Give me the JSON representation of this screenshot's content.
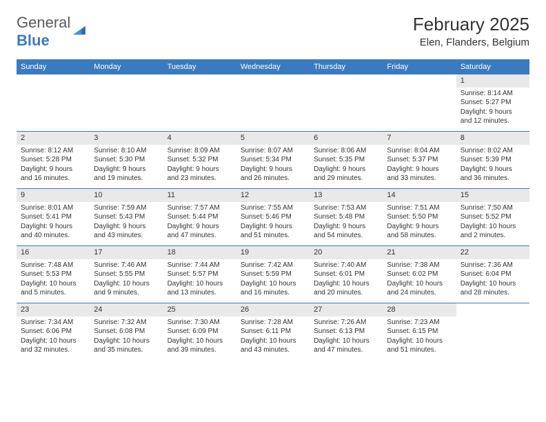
{
  "branding": {
    "logo_word1": "General",
    "logo_word2": "Blue",
    "logo_color_dark": "#5a5a5a",
    "logo_color_blue": "#3a7bbf"
  },
  "header": {
    "month_title": "February 2025",
    "location": "Elen, Flanders, Belgium"
  },
  "style": {
    "header_bg": "#3a7bbf",
    "header_text": "#ffffff",
    "grid_border": "#3a7bbf",
    "daynum_bg": "#e9e9e9",
    "body_text": "#333333",
    "page_bg": "#ffffff",
    "title_fontsize": 26,
    "location_fontsize": 15,
    "weekday_fontsize": 11,
    "cell_fontsize": 10
  },
  "weekdays": [
    "Sunday",
    "Monday",
    "Tuesday",
    "Wednesday",
    "Thursday",
    "Friday",
    "Saturday"
  ],
  "weeks": [
    [
      {
        "day": "",
        "sunrise": "",
        "sunset": "",
        "daylight": ""
      },
      {
        "day": "",
        "sunrise": "",
        "sunset": "",
        "daylight": ""
      },
      {
        "day": "",
        "sunrise": "",
        "sunset": "",
        "daylight": ""
      },
      {
        "day": "",
        "sunrise": "",
        "sunset": "",
        "daylight": ""
      },
      {
        "day": "",
        "sunrise": "",
        "sunset": "",
        "daylight": ""
      },
      {
        "day": "",
        "sunrise": "",
        "sunset": "",
        "daylight": ""
      },
      {
        "day": "1",
        "sunrise": "Sunrise: 8:14 AM",
        "sunset": "Sunset: 5:27 PM",
        "daylight": "Daylight: 9 hours and 12 minutes."
      }
    ],
    [
      {
        "day": "2",
        "sunrise": "Sunrise: 8:12 AM",
        "sunset": "Sunset: 5:28 PM",
        "daylight": "Daylight: 9 hours and 16 minutes."
      },
      {
        "day": "3",
        "sunrise": "Sunrise: 8:10 AM",
        "sunset": "Sunset: 5:30 PM",
        "daylight": "Daylight: 9 hours and 19 minutes."
      },
      {
        "day": "4",
        "sunrise": "Sunrise: 8:09 AM",
        "sunset": "Sunset: 5:32 PM",
        "daylight": "Daylight: 9 hours and 23 minutes."
      },
      {
        "day": "5",
        "sunrise": "Sunrise: 8:07 AM",
        "sunset": "Sunset: 5:34 PM",
        "daylight": "Daylight: 9 hours and 26 minutes."
      },
      {
        "day": "6",
        "sunrise": "Sunrise: 8:06 AM",
        "sunset": "Sunset: 5:35 PM",
        "daylight": "Daylight: 9 hours and 29 minutes."
      },
      {
        "day": "7",
        "sunrise": "Sunrise: 8:04 AM",
        "sunset": "Sunset: 5:37 PM",
        "daylight": "Daylight: 9 hours and 33 minutes."
      },
      {
        "day": "8",
        "sunrise": "Sunrise: 8:02 AM",
        "sunset": "Sunset: 5:39 PM",
        "daylight": "Daylight: 9 hours and 36 minutes."
      }
    ],
    [
      {
        "day": "9",
        "sunrise": "Sunrise: 8:01 AM",
        "sunset": "Sunset: 5:41 PM",
        "daylight": "Daylight: 9 hours and 40 minutes."
      },
      {
        "day": "10",
        "sunrise": "Sunrise: 7:59 AM",
        "sunset": "Sunset: 5:43 PM",
        "daylight": "Daylight: 9 hours and 43 minutes."
      },
      {
        "day": "11",
        "sunrise": "Sunrise: 7:57 AM",
        "sunset": "Sunset: 5:44 PM",
        "daylight": "Daylight: 9 hours and 47 minutes."
      },
      {
        "day": "12",
        "sunrise": "Sunrise: 7:55 AM",
        "sunset": "Sunset: 5:46 PM",
        "daylight": "Daylight: 9 hours and 51 minutes."
      },
      {
        "day": "13",
        "sunrise": "Sunrise: 7:53 AM",
        "sunset": "Sunset: 5:48 PM",
        "daylight": "Daylight: 9 hours and 54 minutes."
      },
      {
        "day": "14",
        "sunrise": "Sunrise: 7:51 AM",
        "sunset": "Sunset: 5:50 PM",
        "daylight": "Daylight: 9 hours and 58 minutes."
      },
      {
        "day": "15",
        "sunrise": "Sunrise: 7:50 AM",
        "sunset": "Sunset: 5:52 PM",
        "daylight": "Daylight: 10 hours and 2 minutes."
      }
    ],
    [
      {
        "day": "16",
        "sunrise": "Sunrise: 7:48 AM",
        "sunset": "Sunset: 5:53 PM",
        "daylight": "Daylight: 10 hours and 5 minutes."
      },
      {
        "day": "17",
        "sunrise": "Sunrise: 7:46 AM",
        "sunset": "Sunset: 5:55 PM",
        "daylight": "Daylight: 10 hours and 9 minutes."
      },
      {
        "day": "18",
        "sunrise": "Sunrise: 7:44 AM",
        "sunset": "Sunset: 5:57 PM",
        "daylight": "Daylight: 10 hours and 13 minutes."
      },
      {
        "day": "19",
        "sunrise": "Sunrise: 7:42 AM",
        "sunset": "Sunset: 5:59 PM",
        "daylight": "Daylight: 10 hours and 16 minutes."
      },
      {
        "day": "20",
        "sunrise": "Sunrise: 7:40 AM",
        "sunset": "Sunset: 6:01 PM",
        "daylight": "Daylight: 10 hours and 20 minutes."
      },
      {
        "day": "21",
        "sunrise": "Sunrise: 7:38 AM",
        "sunset": "Sunset: 6:02 PM",
        "daylight": "Daylight: 10 hours and 24 minutes."
      },
      {
        "day": "22",
        "sunrise": "Sunrise: 7:36 AM",
        "sunset": "Sunset: 6:04 PM",
        "daylight": "Daylight: 10 hours and 28 minutes."
      }
    ],
    [
      {
        "day": "23",
        "sunrise": "Sunrise: 7:34 AM",
        "sunset": "Sunset: 6:06 PM",
        "daylight": "Daylight: 10 hours and 32 minutes."
      },
      {
        "day": "24",
        "sunrise": "Sunrise: 7:32 AM",
        "sunset": "Sunset: 6:08 PM",
        "daylight": "Daylight: 10 hours and 35 minutes."
      },
      {
        "day": "25",
        "sunrise": "Sunrise: 7:30 AM",
        "sunset": "Sunset: 6:09 PM",
        "daylight": "Daylight: 10 hours and 39 minutes."
      },
      {
        "day": "26",
        "sunrise": "Sunrise: 7:28 AM",
        "sunset": "Sunset: 6:11 PM",
        "daylight": "Daylight: 10 hours and 43 minutes."
      },
      {
        "day": "27",
        "sunrise": "Sunrise: 7:26 AM",
        "sunset": "Sunset: 6:13 PM",
        "daylight": "Daylight: 10 hours and 47 minutes."
      },
      {
        "day": "28",
        "sunrise": "Sunrise: 7:23 AM",
        "sunset": "Sunset: 6:15 PM",
        "daylight": "Daylight: 10 hours and 51 minutes."
      },
      {
        "day": "",
        "sunrise": "",
        "sunset": "",
        "daylight": ""
      }
    ]
  ]
}
